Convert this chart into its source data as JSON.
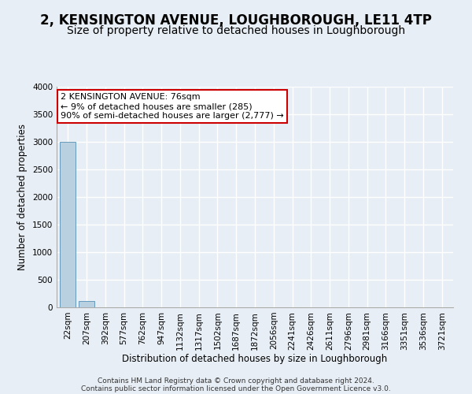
{
  "title": "2, KENSINGTON AVENUE, LOUGHBOROUGH, LE11 4TP",
  "subtitle": "Size of property relative to detached houses in Loughborough",
  "xlabel": "Distribution of detached houses by size in Loughborough",
  "ylabel": "Number of detached properties",
  "footnote1": "Contains HM Land Registry data © Crown copyright and database right 2024.",
  "footnote2": "Contains public sector information licensed under the Open Government Licence v3.0.",
  "annotation_line1": "2 KENSINGTON AVENUE: 76sqm",
  "annotation_line2": "← 9% of detached houses are smaller (285)",
  "annotation_line3": "90% of semi-detached houses are larger (2,777) →",
  "bar_color": "#b8d0e0",
  "bar_edge_color": "#6699bb",
  "annotation_box_color": "#ffffff",
  "annotation_box_edge": "#cc0000",
  "bg_color": "#e8eef5",
  "plot_bg_color": "#e8eef5",
  "grid_color": "#ffffff",
  "categories": [
    "22sqm",
    "207sqm",
    "392sqm",
    "577sqm",
    "762sqm",
    "947sqm",
    "1132sqm",
    "1317sqm",
    "1502sqm",
    "1687sqm",
    "1872sqm",
    "2056sqm",
    "2241sqm",
    "2426sqm",
    "2611sqm",
    "2796sqm",
    "2981sqm",
    "3166sqm",
    "3351sqm",
    "3536sqm",
    "3721sqm"
  ],
  "values": [
    3000,
    120,
    4,
    2,
    1,
    0,
    0,
    0,
    0,
    0,
    0,
    0,
    0,
    0,
    0,
    0,
    0,
    0,
    0,
    0,
    0
  ],
  "ylim": [
    0,
    4000
  ],
  "yticks": [
    0,
    500,
    1000,
    1500,
    2000,
    2500,
    3000,
    3500,
    4000
  ],
  "title_fontsize": 12,
  "subtitle_fontsize": 10,
  "axis_label_fontsize": 8.5,
  "tick_fontsize": 7.5,
  "annotation_fontsize": 8,
  "footnote_fontsize": 6.5
}
